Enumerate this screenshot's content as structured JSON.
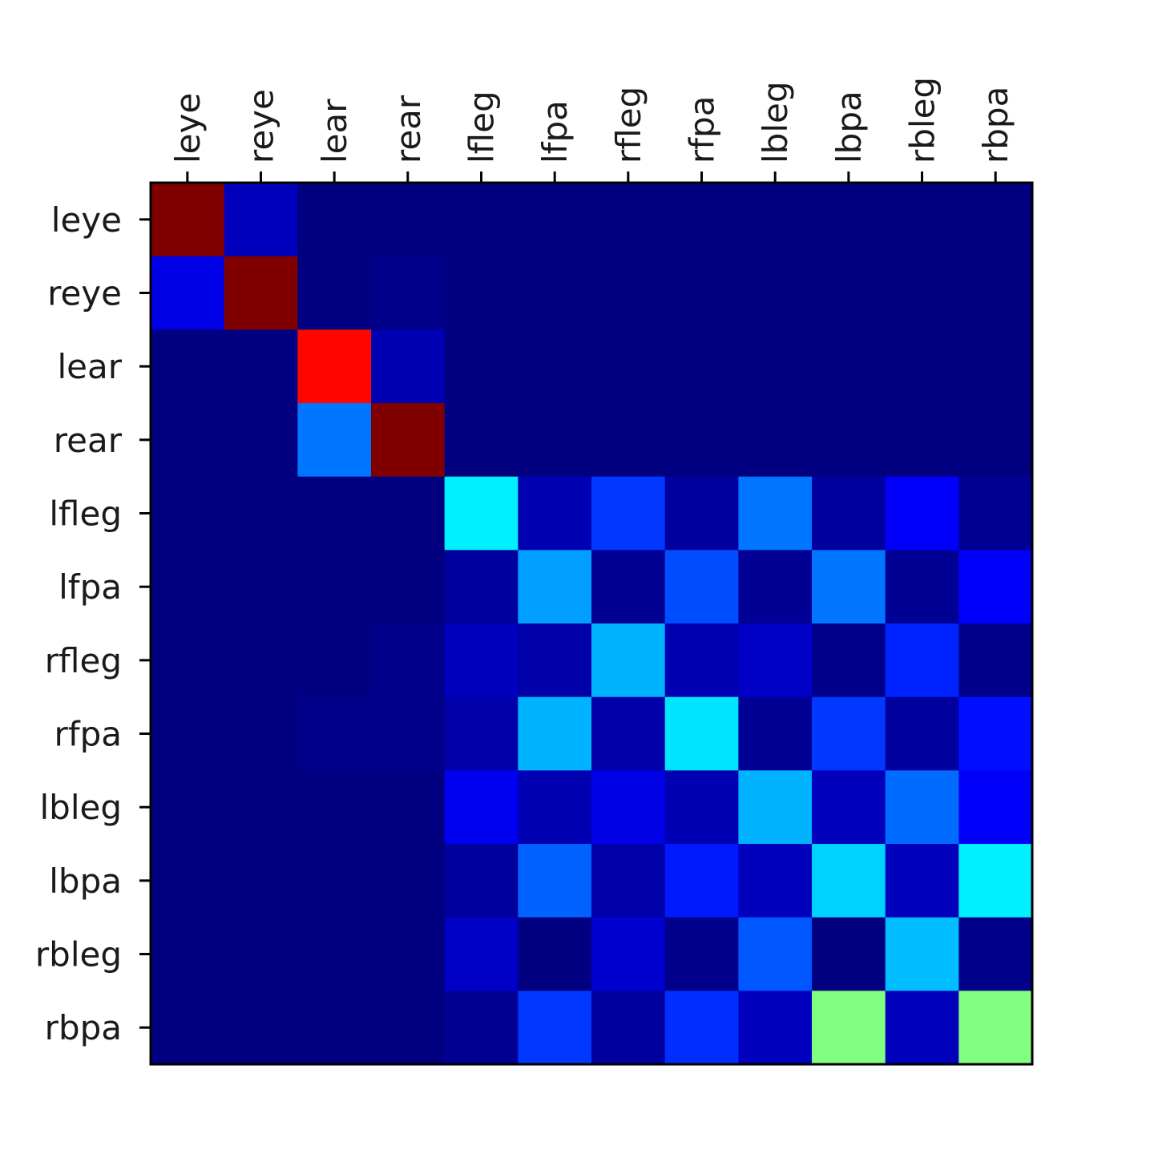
{
  "chart_data": {
    "type": "heatmap",
    "title": "",
    "xlabel": "",
    "ylabel": "",
    "colormap": "jet",
    "value_range": [
      0,
      1
    ],
    "x_axis_position": "top",
    "grid": false,
    "legend": "none",
    "x_categories": [
      "leye",
      "reye",
      "lear",
      "rear",
      "lfleg",
      "lfpa",
      "rfleg",
      "rfpa",
      "lbleg",
      "lbpa",
      "rbleg",
      "rbpa"
    ],
    "y_categories": [
      "leye",
      "reye",
      "lear",
      "rear",
      "lfleg",
      "lfpa",
      "rfleg",
      "rfpa",
      "lbleg",
      "lbpa",
      "rbleg",
      "rbpa"
    ],
    "values": [
      [
        1.0,
        0.06,
        0.0,
        0.0,
        0.0,
        0.0,
        0.0,
        0.0,
        0.0,
        0.0,
        0.0,
        0.0
      ],
      [
        0.1,
        1.0,
        0.0,
        0.01,
        0.0,
        0.0,
        0.0,
        0.0,
        0.0,
        0.0,
        0.0,
        0.0
      ],
      [
        0.0,
        0.0,
        0.87,
        0.05,
        0.0,
        0.0,
        0.0,
        0.0,
        0.0,
        0.0,
        0.0,
        0.0
      ],
      [
        0.0,
        0.0,
        0.24,
        1.0,
        0.0,
        0.0,
        0.0,
        0.0,
        0.0,
        0.0,
        0.0,
        0.0
      ],
      [
        0.0,
        0.0,
        0.0,
        0.0,
        0.36,
        0.05,
        0.18,
        0.03,
        0.24,
        0.03,
        0.12,
        0.02
      ],
      [
        0.0,
        0.0,
        0.0,
        0.0,
        0.03,
        0.28,
        0.02,
        0.2,
        0.02,
        0.24,
        0.02,
        0.12
      ],
      [
        0.0,
        0.0,
        0.0,
        0.01,
        0.06,
        0.04,
        0.3,
        0.05,
        0.07,
        0.01,
        0.16,
        0.01
      ],
      [
        0.0,
        0.0,
        0.01,
        0.01,
        0.04,
        0.3,
        0.04,
        0.35,
        0.02,
        0.18,
        0.03,
        0.14
      ],
      [
        0.0,
        0.0,
        0.0,
        0.0,
        0.11,
        0.05,
        0.1,
        0.05,
        0.3,
        0.06,
        0.23,
        0.12
      ],
      [
        0.0,
        0.0,
        0.0,
        0.0,
        0.03,
        0.22,
        0.04,
        0.15,
        0.06,
        0.33,
        0.06,
        0.36
      ],
      [
        0.0,
        0.0,
        0.0,
        0.0,
        0.07,
        0.0,
        0.08,
        0.01,
        0.21,
        0.0,
        0.31,
        0.01
      ],
      [
        0.0,
        0.0,
        0.0,
        0.0,
        0.02,
        0.18,
        0.03,
        0.17,
        0.06,
        0.5,
        0.06,
        0.5
      ]
    ]
  }
}
